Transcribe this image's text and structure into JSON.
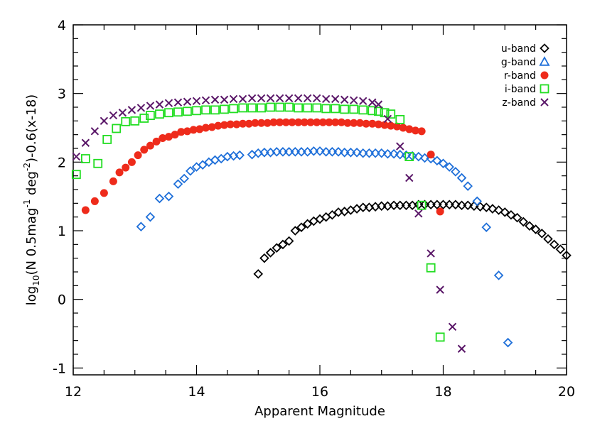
{
  "chart_data": {
    "type": "scatter",
    "xlabel": "Apparent Magnitude",
    "ylabel": {
      "prefix": "log",
      "prefix_sub": "10",
      "part1": "(N 0.5mag",
      "sup1": "-1",
      "part2": " deg",
      "sup2": "-2",
      "part3": ")-0.6(x-18)"
    },
    "xlim": [
      12,
      20
    ],
    "ylim": [
      -1.1,
      4
    ],
    "xticks": [
      12,
      14,
      16,
      18,
      20
    ],
    "yticks": [
      -1,
      0,
      1,
      2,
      3,
      4
    ],
    "grid": false,
    "legend_position": "top-right",
    "series": [
      {
        "name": "u-band",
        "marker": "diamond",
        "color": "#000000",
        "points": [
          [
            15.0,
            0.37
          ],
          [
            15.1,
            0.6
          ],
          [
            15.2,
            0.68
          ],
          [
            15.3,
            0.75
          ],
          [
            15.4,
            0.8
          ],
          [
            15.5,
            0.85
          ],
          [
            15.6,
            1.0
          ],
          [
            15.7,
            1.05
          ],
          [
            15.8,
            1.1
          ],
          [
            15.9,
            1.14
          ],
          [
            16.0,
            1.17
          ],
          [
            16.1,
            1.2
          ],
          [
            16.2,
            1.23
          ],
          [
            16.3,
            1.27
          ],
          [
            16.4,
            1.28
          ],
          [
            16.5,
            1.3
          ],
          [
            16.6,
            1.32
          ],
          [
            16.7,
            1.34
          ],
          [
            16.8,
            1.34
          ],
          [
            16.9,
            1.35
          ],
          [
            17.0,
            1.36
          ],
          [
            17.1,
            1.36
          ],
          [
            17.2,
            1.37
          ],
          [
            17.3,
            1.37
          ],
          [
            17.4,
            1.37
          ],
          [
            17.5,
            1.37
          ],
          [
            17.6,
            1.38
          ],
          [
            17.7,
            1.38
          ],
          [
            17.8,
            1.38
          ],
          [
            17.9,
            1.38
          ],
          [
            18.0,
            1.38
          ],
          [
            18.1,
            1.38
          ],
          [
            18.2,
            1.38
          ],
          [
            18.3,
            1.37
          ],
          [
            18.4,
            1.37
          ],
          [
            18.5,
            1.36
          ],
          [
            18.6,
            1.35
          ],
          [
            18.7,
            1.34
          ],
          [
            18.8,
            1.32
          ],
          [
            18.9,
            1.3
          ],
          [
            19.0,
            1.27
          ],
          [
            19.1,
            1.23
          ],
          [
            19.2,
            1.19
          ],
          [
            19.3,
            1.13
          ],
          [
            19.4,
            1.07
          ],
          [
            19.5,
            1.02
          ],
          [
            19.6,
            0.96
          ],
          [
            19.7,
            0.88
          ],
          [
            19.8,
            0.8
          ],
          [
            19.9,
            0.73
          ],
          [
            20.0,
            0.64
          ]
        ]
      },
      {
        "name": "g-band",
        "marker": "diamond",
        "color": "#1e6fd9",
        "points": [
          [
            13.1,
            1.06
          ],
          [
            13.25,
            1.2
          ],
          [
            13.4,
            1.47
          ],
          [
            13.55,
            1.5
          ],
          [
            13.7,
            1.68
          ],
          [
            13.8,
            1.76
          ],
          [
            13.9,
            1.87
          ],
          [
            14.0,
            1.93
          ],
          [
            14.1,
            1.96
          ],
          [
            14.2,
            2.0
          ],
          [
            14.3,
            2.03
          ],
          [
            14.4,
            2.05
          ],
          [
            14.5,
            2.08
          ],
          [
            14.6,
            2.09
          ],
          [
            14.7,
            2.1
          ],
          [
            14.9,
            2.11
          ],
          [
            15.0,
            2.13
          ],
          [
            15.1,
            2.14
          ],
          [
            15.2,
            2.14
          ],
          [
            15.3,
            2.15
          ],
          [
            15.4,
            2.15
          ],
          [
            15.5,
            2.15
          ],
          [
            15.6,
            2.15
          ],
          [
            15.7,
            2.15
          ],
          [
            15.8,
            2.15
          ],
          [
            15.9,
            2.16
          ],
          [
            16.0,
            2.16
          ],
          [
            16.1,
            2.15
          ],
          [
            16.2,
            2.15
          ],
          [
            16.3,
            2.15
          ],
          [
            16.4,
            2.14
          ],
          [
            16.5,
            2.14
          ],
          [
            16.6,
            2.14
          ],
          [
            16.7,
            2.13
          ],
          [
            16.8,
            2.13
          ],
          [
            16.9,
            2.13
          ],
          [
            17.0,
            2.13
          ],
          [
            17.1,
            2.12
          ],
          [
            17.2,
            2.12
          ],
          [
            17.3,
            2.11
          ],
          [
            17.4,
            2.1
          ],
          [
            17.5,
            2.09
          ],
          [
            17.6,
            2.08
          ],
          [
            17.7,
            2.06
          ],
          [
            17.8,
            2.05
          ],
          [
            17.9,
            2.02
          ],
          [
            18.0,
            1.98
          ],
          [
            18.1,
            1.93
          ],
          [
            18.2,
            1.86
          ],
          [
            18.3,
            1.77
          ],
          [
            18.4,
            1.65
          ],
          [
            18.55,
            1.43
          ],
          [
            18.7,
            1.05
          ],
          [
            18.9,
            0.35
          ],
          [
            19.05,
            -0.63
          ]
        ]
      },
      {
        "name": "r-band",
        "marker": "circle",
        "color": "#ee2b1b",
        "points": [
          [
            12.2,
            1.3
          ],
          [
            12.35,
            1.43
          ],
          [
            12.5,
            1.55
          ],
          [
            12.65,
            1.72
          ],
          [
            12.75,
            1.85
          ],
          [
            12.85,
            1.92
          ],
          [
            12.95,
            2.0
          ],
          [
            13.05,
            2.1
          ],
          [
            13.15,
            2.18
          ],
          [
            13.25,
            2.24
          ],
          [
            13.35,
            2.3
          ],
          [
            13.45,
            2.35
          ],
          [
            13.55,
            2.37
          ],
          [
            13.65,
            2.4
          ],
          [
            13.75,
            2.44
          ],
          [
            13.85,
            2.45
          ],
          [
            13.95,
            2.47
          ],
          [
            14.05,
            2.48
          ],
          [
            14.15,
            2.5
          ],
          [
            14.25,
            2.51
          ],
          [
            14.35,
            2.53
          ],
          [
            14.45,
            2.54
          ],
          [
            14.55,
            2.55
          ],
          [
            14.65,
            2.55
          ],
          [
            14.75,
            2.56
          ],
          [
            14.85,
            2.56
          ],
          [
            14.95,
            2.57
          ],
          [
            15.05,
            2.57
          ],
          [
            15.15,
            2.57
          ],
          [
            15.25,
            2.58
          ],
          [
            15.35,
            2.58
          ],
          [
            15.45,
            2.58
          ],
          [
            15.55,
            2.58
          ],
          [
            15.65,
            2.58
          ],
          [
            15.75,
            2.58
          ],
          [
            15.85,
            2.58
          ],
          [
            15.95,
            2.58
          ],
          [
            16.05,
            2.58
          ],
          [
            16.15,
            2.58
          ],
          [
            16.25,
            2.58
          ],
          [
            16.35,
            2.58
          ],
          [
            16.45,
            2.57
          ],
          [
            16.55,
            2.57
          ],
          [
            16.65,
            2.57
          ],
          [
            16.75,
            2.56
          ],
          [
            16.85,
            2.56
          ],
          [
            16.95,
            2.55
          ],
          [
            17.05,
            2.54
          ],
          [
            17.15,
            2.53
          ],
          [
            17.25,
            2.52
          ],
          [
            17.35,
            2.5
          ],
          [
            17.45,
            2.48
          ],
          [
            17.55,
            2.46
          ],
          [
            17.65,
            2.45
          ],
          [
            17.8,
            2.11
          ],
          [
            17.95,
            1.28
          ]
        ]
      },
      {
        "name": "i-band",
        "marker": "square",
        "color": "#22dd22",
        "points": [
          [
            12.05,
            1.82
          ],
          [
            12.2,
            2.05
          ],
          [
            12.4,
            1.98
          ],
          [
            12.55,
            2.33
          ],
          [
            12.7,
            2.49
          ],
          [
            12.85,
            2.59
          ],
          [
            13.0,
            2.6
          ],
          [
            13.15,
            2.64
          ],
          [
            13.25,
            2.68
          ],
          [
            13.4,
            2.7
          ],
          [
            13.55,
            2.72
          ],
          [
            13.7,
            2.73
          ],
          [
            13.85,
            2.74
          ],
          [
            14.0,
            2.75
          ],
          [
            14.15,
            2.76
          ],
          [
            14.3,
            2.76
          ],
          [
            14.45,
            2.77
          ],
          [
            14.6,
            2.78
          ],
          [
            14.75,
            2.79
          ],
          [
            14.9,
            2.79
          ],
          [
            15.05,
            2.79
          ],
          [
            15.2,
            2.8
          ],
          [
            15.35,
            2.8
          ],
          [
            15.5,
            2.8
          ],
          [
            15.65,
            2.79
          ],
          [
            15.8,
            2.79
          ],
          [
            15.95,
            2.79
          ],
          [
            16.1,
            2.78
          ],
          [
            16.25,
            2.78
          ],
          [
            16.4,
            2.77
          ],
          [
            16.55,
            2.77
          ],
          [
            16.7,
            2.76
          ],
          [
            16.85,
            2.75
          ],
          [
            16.95,
            2.74
          ],
          [
            17.05,
            2.72
          ],
          [
            17.15,
            2.7
          ],
          [
            17.3,
            2.62
          ],
          [
            17.45,
            2.08
          ],
          [
            17.65,
            1.37
          ],
          [
            17.8,
            0.46
          ],
          [
            17.95,
            -0.55
          ]
        ]
      },
      {
        "name": "z-band",
        "marker": "x",
        "color": "#5a1768",
        "points": [
          [
            12.05,
            2.08
          ],
          [
            12.2,
            2.28
          ],
          [
            12.35,
            2.45
          ],
          [
            12.5,
            2.6
          ],
          [
            12.65,
            2.68
          ],
          [
            12.8,
            2.72
          ],
          [
            12.95,
            2.76
          ],
          [
            13.1,
            2.79
          ],
          [
            13.25,
            2.82
          ],
          [
            13.4,
            2.84
          ],
          [
            13.55,
            2.86
          ],
          [
            13.7,
            2.87
          ],
          [
            13.85,
            2.88
          ],
          [
            14.0,
            2.89
          ],
          [
            14.15,
            2.9
          ],
          [
            14.3,
            2.91
          ],
          [
            14.45,
            2.91
          ],
          [
            14.6,
            2.92
          ],
          [
            14.75,
            2.92
          ],
          [
            14.9,
            2.93
          ],
          [
            15.05,
            2.93
          ],
          [
            15.2,
            2.93
          ],
          [
            15.35,
            2.93
          ],
          [
            15.5,
            2.93
          ],
          [
            15.65,
            2.93
          ],
          [
            15.8,
            2.93
          ],
          [
            15.95,
            2.93
          ],
          [
            16.1,
            2.92
          ],
          [
            16.25,
            2.92
          ],
          [
            16.4,
            2.91
          ],
          [
            16.55,
            2.9
          ],
          [
            16.7,
            2.89
          ],
          [
            16.85,
            2.87
          ],
          [
            16.95,
            2.84
          ],
          [
            17.1,
            2.63
          ],
          [
            17.3,
            2.23
          ],
          [
            17.45,
            1.77
          ],
          [
            17.6,
            1.25
          ],
          [
            17.8,
            0.67
          ],
          [
            17.95,
            0.14
          ],
          [
            18.15,
            -0.4
          ],
          [
            18.3,
            -0.72
          ]
        ]
      }
    ]
  }
}
